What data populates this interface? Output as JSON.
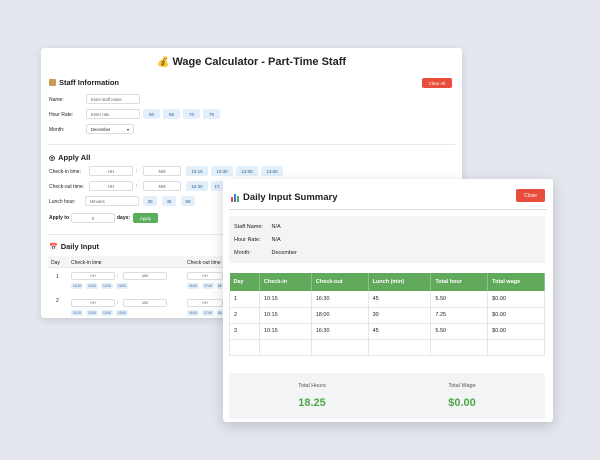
{
  "app": {
    "title": "Wage Calculator - Part-Time Staff",
    "title_icon": "money-bag-icon"
  },
  "staff_info": {
    "heading": "Staff Information",
    "clear_all": "Clear All",
    "name_label": "Name:",
    "name_placeholder": "Enter staff name",
    "rate_label": "Hour Rate:",
    "rate_placeholder": "Enter rate",
    "rate_presets": [
      "60",
      "65",
      "70",
      "75"
    ],
    "month_label": "Month:",
    "month_value": "December"
  },
  "apply_all": {
    "heading": "Apply All",
    "checkin_label": "Check-in time:",
    "checkout_label": "Check-out time:",
    "lunch_label": "Lunch hour:",
    "hh": "HH",
    "mm": "MM",
    "colon": ":",
    "checkin_presets": [
      "10:15",
      "10:30",
      "12:00",
      "13:00"
    ],
    "checkout_presets": [
      "16:30",
      "17"
    ],
    "lunch_placeholder": "Minutes",
    "lunch_presets": [
      "30",
      "45",
      "60"
    ],
    "apply_to_label": "Apply to",
    "apply_days_value": "0",
    "days_label": "days:",
    "apply_button": "Apply"
  },
  "daily_input": {
    "heading": "Daily Input",
    "columns": [
      "Day",
      "Check-in time",
      "Check-out time"
    ],
    "rows": [
      {
        "day": "1",
        "presets_in": [
          "10:15",
          "10:30",
          "12:00",
          "13:00"
        ],
        "presets_out": [
          "16:30",
          "17:40",
          "18:"
        ]
      },
      {
        "day": "2",
        "presets_in": [
          "10:15",
          "10:30",
          "12:00",
          "13:00"
        ],
        "presets_out": [
          "16:30",
          "17:40",
          "18:"
        ]
      }
    ]
  },
  "summary": {
    "title": "Daily Input Summary",
    "close": "Close",
    "staff_name_label": "Staff Name:",
    "staff_name_value": "N/A",
    "hour_rate_label": "Hour Rate:",
    "hour_rate_value": "N/A",
    "month_label": "Month:",
    "month_value": "December",
    "columns": [
      "Day",
      "Check-in",
      "Check-out",
      "Lunch (min)",
      "Total hour",
      "Total wage"
    ],
    "rows": [
      [
        "1",
        "10:15",
        "16:30",
        "45",
        "5.50",
        "$0.00"
      ],
      [
        "2",
        "10:15",
        "18:00",
        "30",
        "7.25",
        "$0.00"
      ],
      [
        "3",
        "10:15",
        "16:30",
        "45",
        "5.50",
        "$0.00"
      ],
      [
        "",
        "",
        "",
        "",
        "",
        ""
      ]
    ],
    "total_hours_label": "Total Hours",
    "total_hours_value": "18.25",
    "total_wage_label": "Total Wage",
    "total_wage_value": "$0.00"
  },
  "colors": {
    "danger": "#e74c3c",
    "success": "#62aa5b",
    "chip_bg": "#e3f0fb"
  }
}
